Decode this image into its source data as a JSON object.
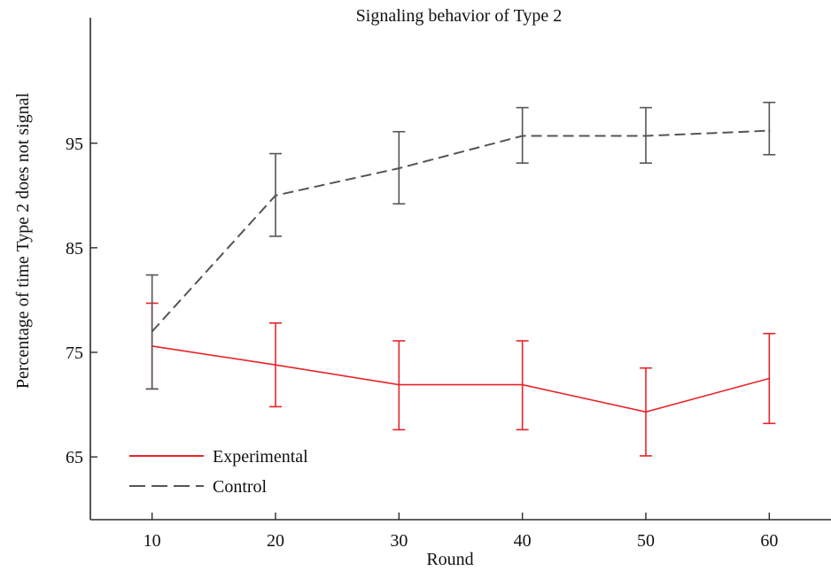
{
  "chart_data": {
    "type": "line",
    "title": "Signaling behavior of Type 2",
    "xlabel": "Round",
    "ylabel": "Percentage of time Type 2 does not signal",
    "x": [
      10,
      20,
      30,
      40,
      50,
      60
    ],
    "xticks": [
      "10",
      "20",
      "30",
      "40",
      "50",
      "60"
    ],
    "yticks": [
      "65",
      "75",
      "85",
      "95"
    ],
    "ytick_values": [
      65,
      75,
      85,
      95
    ],
    "xlim": [
      5,
      65
    ],
    "ylim": [
      59,
      107
    ],
    "grid": false,
    "legend_position": "bottom-left",
    "series": [
      {
        "name": "Experimental",
        "color": "#e8242a",
        "dash": "solid",
        "values": [
          75.6,
          73.8,
          71.9,
          71.9,
          69.3,
          72.5
        ],
        "err_low": [
          71.5,
          69.8,
          67.6,
          67.6,
          65.1,
          68.2
        ],
        "err_high": [
          79.7,
          77.8,
          76.1,
          76.1,
          73.5,
          76.8
        ]
      },
      {
        "name": "Control",
        "color": "#555555",
        "dash": "dashed",
        "values": [
          77.0,
          90.0,
          92.6,
          95.7,
          95.7,
          96.2
        ],
        "err_low": [
          71.5,
          86.1,
          89.2,
          93.1,
          93.1,
          93.9
        ],
        "err_high": [
          82.4,
          94.0,
          96.1,
          98.4,
          98.4,
          98.9
        ]
      }
    ]
  }
}
